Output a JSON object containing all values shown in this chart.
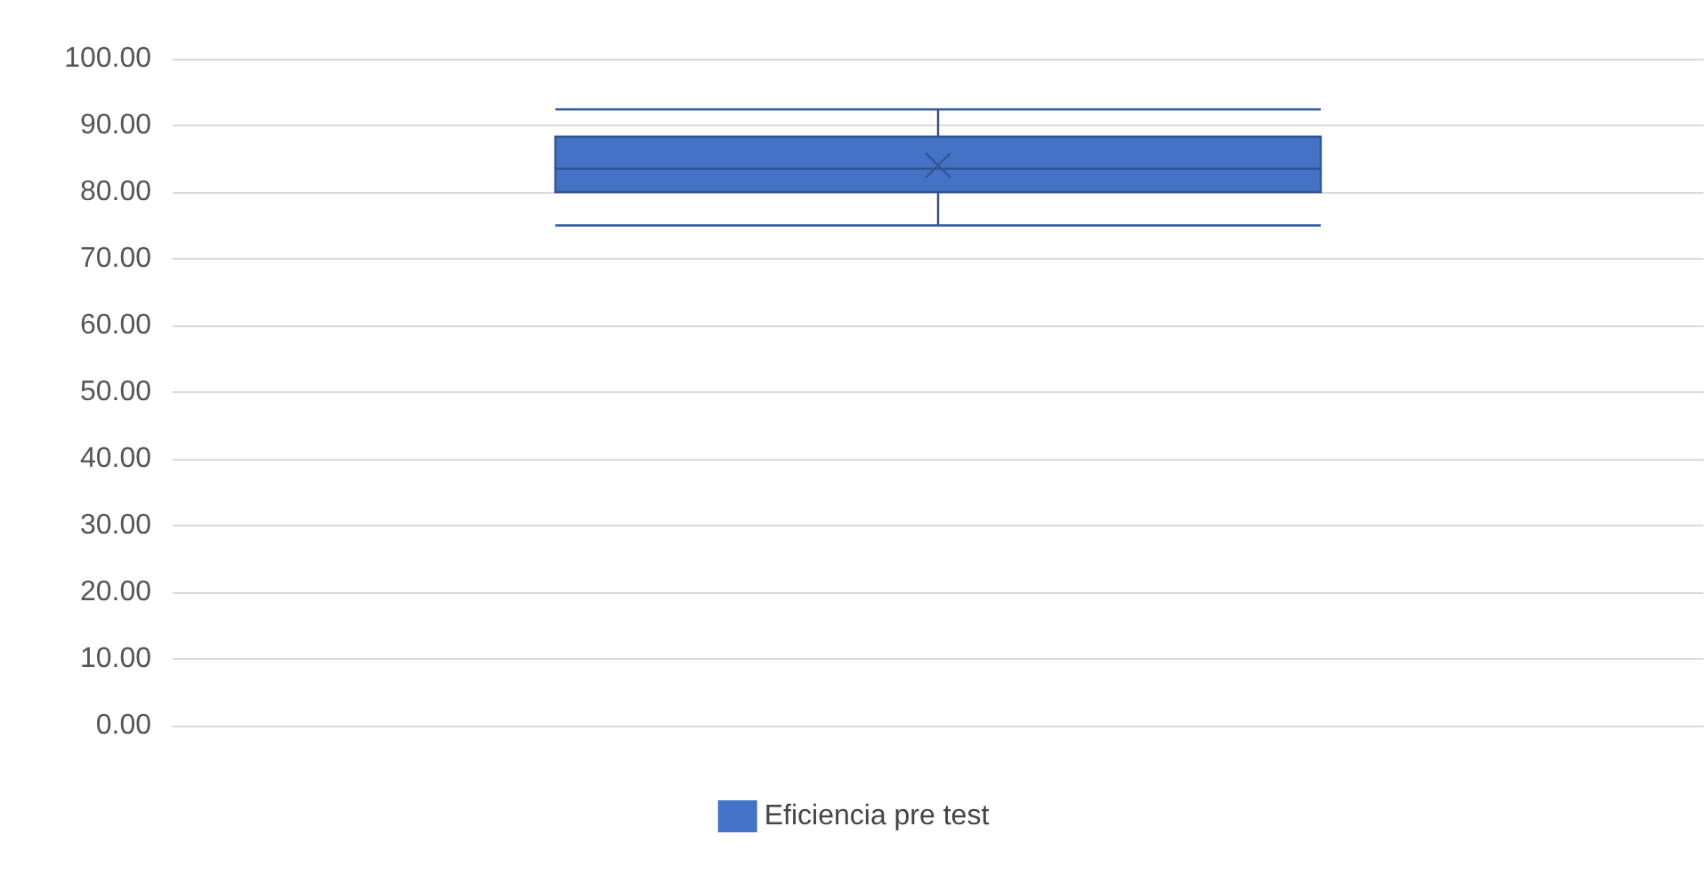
{
  "chart_data": {
    "type": "box",
    "categories": [
      null
    ],
    "series": [
      {
        "name": "Eficiencia pre test",
        "color": "#4472c4",
        "boxes": [
          {
            "low": 75,
            "q1": 80,
            "median": 83.5,
            "q3": 88.3,
            "high": 92.4,
            "mean": 84
          }
        ]
      }
    ],
    "ylim": [
      0,
      100
    ],
    "yticks": [
      {
        "value": 0,
        "label": "0.00"
      },
      {
        "value": 10,
        "label": "10.00"
      },
      {
        "value": 20,
        "label": "20.00"
      },
      {
        "value": 30,
        "label": "30.00"
      },
      {
        "value": 40,
        "label": "40.00"
      },
      {
        "value": 50,
        "label": "50.00"
      },
      {
        "value": 60,
        "label": "60.00"
      },
      {
        "value": 70,
        "label": "70.00"
      },
      {
        "value": 80,
        "label": "80.00"
      },
      {
        "value": 90,
        "label": "90.00"
      },
      {
        "value": 100,
        "label": "100.00"
      }
    ],
    "grid": "y",
    "legend": "bottom",
    "marker": "cross"
  }
}
